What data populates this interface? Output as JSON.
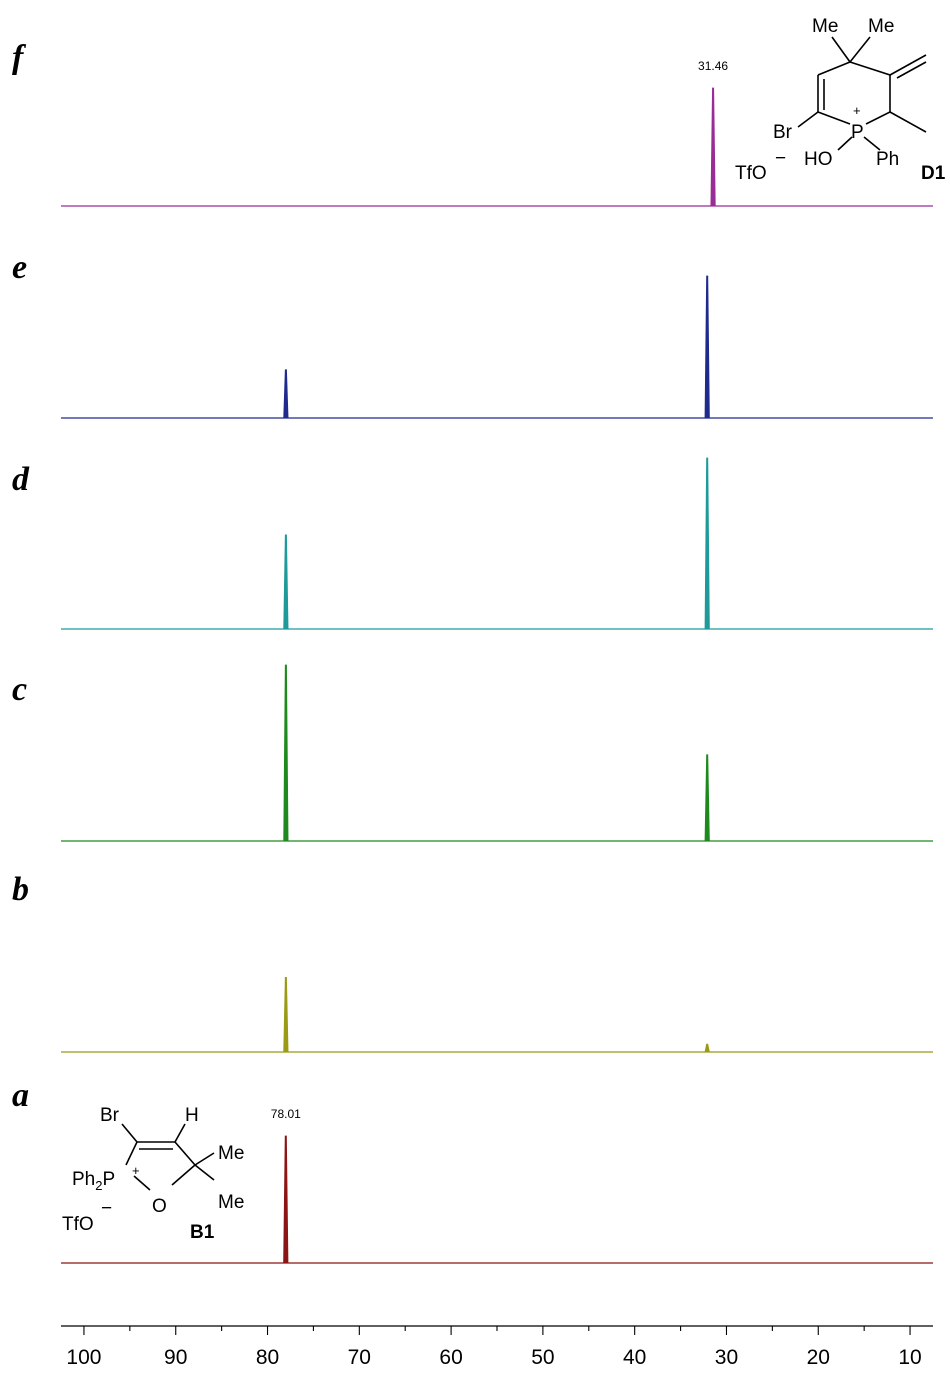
{
  "chart_data": {
    "type": "line",
    "title": "",
    "xlabel": "",
    "ylabel": "",
    "x_reversed": true,
    "xlim": [
      102.5,
      7.5
    ],
    "ticks": [
      100,
      90,
      80,
      70,
      60,
      50,
      40,
      30,
      20,
      10
    ],
    "tick_labels": [
      "100",
      "90",
      "80",
      "70",
      "60",
      "50",
      "40",
      "30",
      "20",
      "10"
    ],
    "grid": false,
    "series": [
      {
        "name": "f",
        "color": "#9a2c96",
        "peaks": [
          {
            "x": 31.46,
            "height": 1.0,
            "label": "31.46"
          }
        ]
      },
      {
        "name": "e",
        "color": "#1e2a8c",
        "peaks": [
          {
            "x": 78.0,
            "height": 0.34
          },
          {
            "x": 32.1,
            "height": 1.0
          }
        ]
      },
      {
        "name": "d",
        "color": "#1e9a9a",
        "peaks": [
          {
            "x": 78.0,
            "height": 0.55
          },
          {
            "x": 32.1,
            "height": 1.0
          }
        ]
      },
      {
        "name": "c",
        "color": "#1e8a1e",
        "peaks": [
          {
            "x": 78.0,
            "height": 1.0
          },
          {
            "x": 32.1,
            "height": 0.49
          }
        ]
      },
      {
        "name": "b",
        "color": "#9a9a14",
        "peaks": [
          {
            "x": 78.0,
            "height": 0.66
          },
          {
            "x": 32.1,
            "height": 0.07
          }
        ]
      },
      {
        "name": "a",
        "color": "#8c1414",
        "peaks": [
          {
            "x": 78.01,
            "height": 1.0,
            "label": "78.01"
          }
        ]
      }
    ],
    "structures": {
      "D1": {
        "label": "D1",
        "me1": "Me",
        "me2": "Me",
        "br": "Br",
        "p": "P",
        "charge": "+",
        "ho": "HO",
        "ph": "Ph",
        "counter": "TfO",
        "counter_charge": "−"
      },
      "B1": {
        "label": "B1",
        "br": "Br",
        "h": "H",
        "me1": "Me",
        "me2": "Me",
        "ph2p": "Ph",
        "ph2p_sub": "2",
        "ph2p_p": "P",
        "charge": "+",
        "o": "O",
        "counter": "TfO",
        "counter_charge": "−"
      }
    }
  }
}
